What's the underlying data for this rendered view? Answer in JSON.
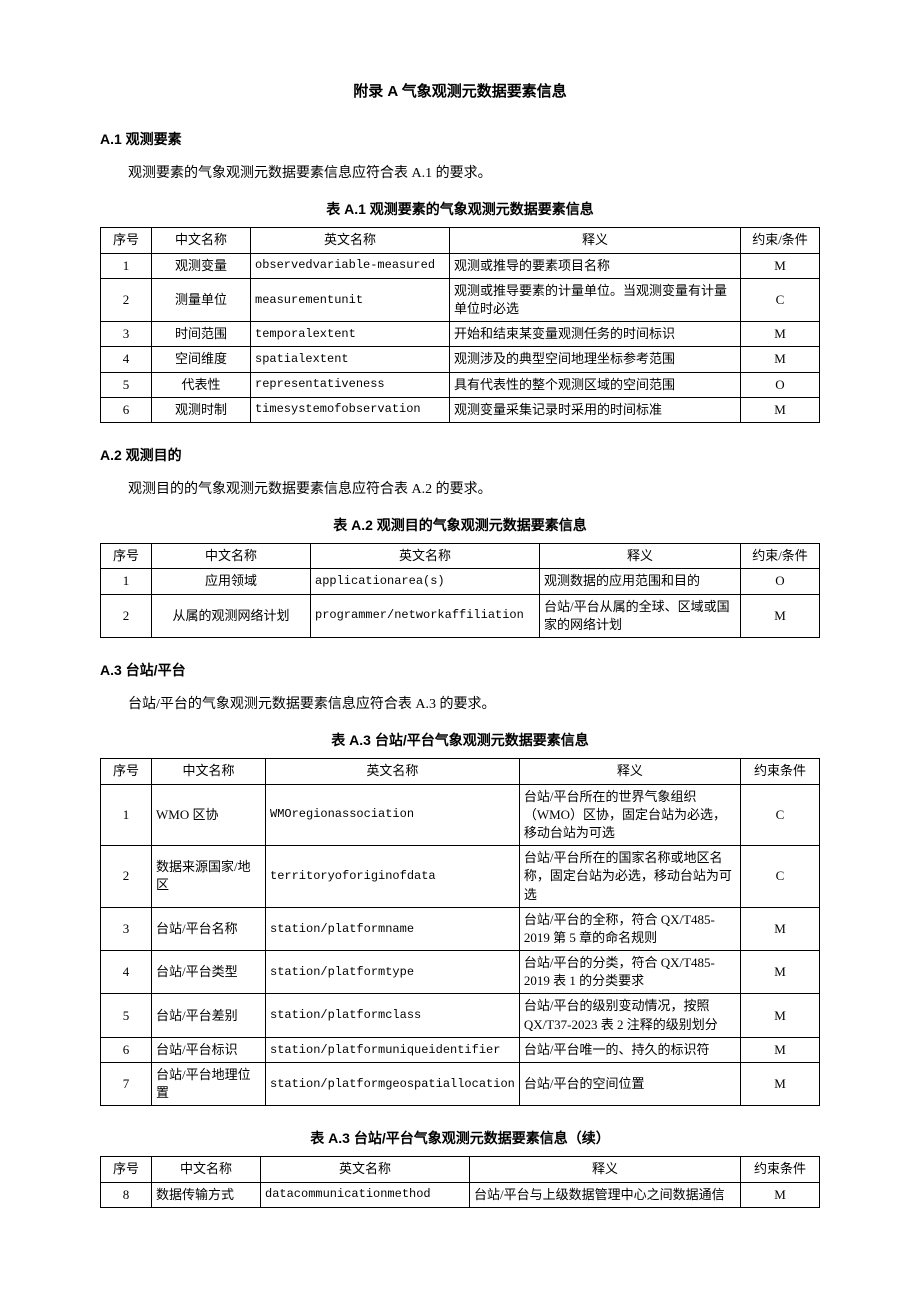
{
  "appendix_title": "附录 A 气象观测元数据要素信息",
  "sections": {
    "a1": {
      "heading": "A.1 观测要素",
      "intro": "观测要素的气象观测元数据要素信息应符合表 A.1 的要求。",
      "caption": "表 A.1 观测要素的气象观测元数据要素信息"
    },
    "a2": {
      "heading": "A.2 观测目的",
      "intro": "观测目的的气象观测元数据要素信息应符合表 A.2 的要求。",
      "caption": "表 A.2 观测目的气象观测元数据要素信息"
    },
    "a3": {
      "heading": "A.3 台站/平台",
      "intro": "台站/平台的气象观测元数据要素信息应符合表 A.3 的要求。",
      "caption": "表 A.3 台站/平台气象观测元数据要素信息",
      "caption_cont": "表 A.3 台站/平台气象观测元数据要素信息（续）"
    }
  },
  "headers": {
    "seq": "序号",
    "cn": "中文名称",
    "en": "英文名称",
    "def": "释义",
    "card": "约束/条件",
    "card2": "约束条件"
  },
  "t1": [
    {
      "seq": "1",
      "cn": "观测变量",
      "en": "observedvariable-measured",
      "def": "观测或推导的要素项目名称",
      "card": "M"
    },
    {
      "seq": "2",
      "cn": "测量单位",
      "en": "measurementunit",
      "def": "观测或推导要素的计量单位。当观测变量有计量单位时必选",
      "card": "C"
    },
    {
      "seq": "3",
      "cn": "时间范围",
      "en": "temporalextent",
      "def": "开始和结束某变量观测任务的时间标识",
      "card": "M"
    },
    {
      "seq": "4",
      "cn": "空间维度",
      "en": "spatialextent",
      "def": "观测涉及的典型空间地理坐标参考范围",
      "card": "M"
    },
    {
      "seq": "5",
      "cn": "代表性",
      "en": "representativeness",
      "def": "具有代表性的整个观测区域的空间范围",
      "card": "O"
    },
    {
      "seq": "6",
      "cn": "观测时制",
      "en": "timesystemofobservation",
      "def": "观测变量采集记录时采用的时间标准",
      "card": "M"
    }
  ],
  "t2": [
    {
      "seq": "1",
      "cn": "应用领域",
      "en": "applicationarea(s)",
      "def": "观测数据的应用范围和目的",
      "card": "O"
    },
    {
      "seq": "2",
      "cn": "从属的观测网络计划",
      "en": "programmer/networkaffiliation",
      "def": "台站/平台从属的全球、区域或国家的网络计划",
      "card": "M"
    }
  ],
  "t3": [
    {
      "seq": "1",
      "cn": "WMO 区协",
      "en": "WMOregionassociation",
      "def": "台站/平台所在的世界气象组织（WMO）区协，固定台站为必选，移动台站为可选",
      "card": "C"
    },
    {
      "seq": "2",
      "cn": "数据来源国家/地区",
      "en": "territoryoforiginofdata",
      "def": "台站/平台所在的国家名称或地区名称，固定台站为必选，移动台站为可选",
      "card": "C"
    },
    {
      "seq": "3",
      "cn": "台站/平台名称",
      "en": "station/platformname",
      "def": "台站/平台的全称，符合 QX/T485-2019 第 5 章的命名规则",
      "card": "M"
    },
    {
      "seq": "4",
      "cn": "台站/平台类型",
      "en": "station/platformtype",
      "def": "台站/平台的分类，符合 QX/T485-2019 表 1 的分类要求",
      "card": "M"
    },
    {
      "seq": "5",
      "cn": "台站/平台差别",
      "en": "station/platformclass",
      "def": "台站/平台的级别变动情况，按照 QX/T37-2023 表 2 注释的级别划分",
      "card": "M"
    },
    {
      "seq": "6",
      "cn": "台站/平台标识",
      "en": "station/platformuniqueidentifier",
      "def": "台站/平台唯一的、持久的标识符",
      "card": "M"
    },
    {
      "seq": "7",
      "cn": "台站/平台地理位置",
      "en": "station/platformgeospatiallocation",
      "def": "台站/平台的空间位置",
      "card": "M"
    }
  ],
  "t3c": [
    {
      "seq": "8",
      "cn": "数据传输方式",
      "en": "datacommunicationmethod",
      "def": "台站/平台与上级数据管理中心之间数据通信",
      "card": "M"
    }
  ]
}
